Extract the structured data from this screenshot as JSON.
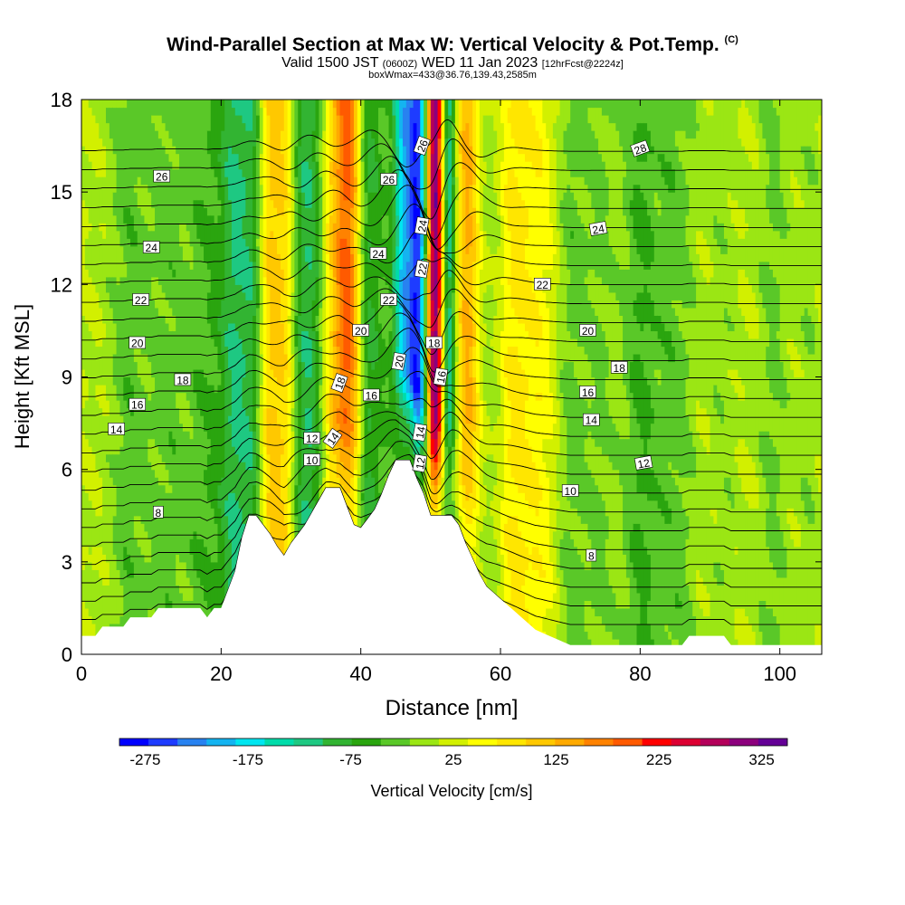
{
  "title_main": "Wind-Parallel Section at Max W: Vertical Velocity & Pot.Temp.",
  "title_mark": "(C)",
  "subtitle_a": "Valid 1500 JST",
  "subtitle_b": "(0600Z)",
  "subtitle_c": "WED 11 Jan 2023",
  "subtitle_d": "[12hrFcst@2224z]",
  "subtitle2": "boxWmax=433@36.76,139.43,2585m",
  "chart_data": {
    "type": "heatmap",
    "xlabel": "Distance [nm]",
    "ylabel": "Height [Kft MSL]",
    "xlim": [
      0,
      106
    ],
    "ylim": [
      0,
      18
    ],
    "xticks": [
      0,
      20,
      40,
      60,
      80,
      100
    ],
    "yticks": [
      0,
      3,
      6,
      9,
      12,
      15,
      18
    ],
    "colorbar": {
      "label": "Vertical Velocity [cm/s]",
      "ticks": [
        -275,
        -175,
        -75,
        25,
        125,
        225,
        325
      ],
      "colors": [
        "#0000ff",
        "#1e3cff",
        "#2882f0",
        "#14b4f0",
        "#00e6f0",
        "#00dcaa",
        "#1ec882",
        "#32b432",
        "#2aa50f",
        "#5ac828",
        "#9be614",
        "#d2f000",
        "#ffff00",
        "#ffe600",
        "#ffc800",
        "#ffaa00",
        "#ff8200",
        "#ff5a00",
        "#ff0000",
        "#dc0032",
        "#b4005a",
        "#8c007d",
        "#640096"
      ]
    },
    "terrain": [
      [
        0,
        0.6
      ],
      [
        1,
        0.6
      ],
      [
        2,
        0.6
      ],
      [
        3,
        0.9
      ],
      [
        4,
        0.9
      ],
      [
        5,
        0.9
      ],
      [
        6,
        0.9
      ],
      [
        7,
        1.2
      ],
      [
        8,
        1.2
      ],
      [
        9,
        1.2
      ],
      [
        10,
        1.2
      ],
      [
        11,
        1.5
      ],
      [
        12,
        1.5
      ],
      [
        13,
        1.5
      ],
      [
        14,
        1.5
      ],
      [
        15,
        1.5
      ],
      [
        16,
        1.5
      ],
      [
        17,
        1.5
      ],
      [
        18,
        1.2
      ],
      [
        19,
        1.5
      ],
      [
        20,
        1.5
      ],
      [
        21,
        2.1
      ],
      [
        22,
        2.7
      ],
      [
        23,
        3.8
      ],
      [
        24,
        4.5
      ],
      [
        25,
        4.5
      ],
      [
        26,
        4.2
      ],
      [
        27,
        3.9
      ],
      [
        28,
        3.5
      ],
      [
        29,
        3.2
      ],
      [
        30,
        3.6
      ],
      [
        31,
        3.9
      ],
      [
        32,
        4.2
      ],
      [
        33,
        4.6
      ],
      [
        34,
        5.0
      ],
      [
        35,
        5.4
      ],
      [
        36,
        5.4
      ],
      [
        37,
        5.4
      ],
      [
        38,
        4.8
      ],
      [
        39,
        4.2
      ],
      [
        40,
        4.1
      ],
      [
        41,
        4.4
      ],
      [
        42,
        4.7
      ],
      [
        43,
        5.2
      ],
      [
        44,
        5.8
      ],
      [
        45,
        6.3
      ],
      [
        46,
        6.3
      ],
      [
        47,
        6.3
      ],
      [
        48,
        5.7
      ],
      [
        49,
        5.2
      ],
      [
        50,
        4.5
      ],
      [
        51,
        4.5
      ],
      [
        52,
        4.5
      ],
      [
        53,
        4.5
      ],
      [
        54,
        4.2
      ],
      [
        55,
        3.6
      ],
      [
        56,
        3.1
      ],
      [
        57,
        2.6
      ],
      [
        58,
        2.2
      ],
      [
        59,
        2.0
      ],
      [
        60,
        1.8
      ],
      [
        61,
        1.6
      ],
      [
        62,
        1.4
      ],
      [
        63,
        1.2
      ],
      [
        64,
        1.0
      ],
      [
        65,
        0.8
      ],
      [
        66,
        0.7
      ],
      [
        67,
        0.6
      ],
      [
        68,
        0.5
      ],
      [
        69,
        0.4
      ],
      [
        70,
        0.3
      ],
      [
        71,
        0.3
      ],
      [
        72,
        0.3
      ],
      [
        73,
        0.3
      ],
      [
        74,
        0.3
      ],
      [
        75,
        0.3
      ],
      [
        76,
        0.3
      ],
      [
        77,
        0.3
      ],
      [
        78,
        0.3
      ],
      [
        79,
        0.3
      ],
      [
        80,
        0.3
      ],
      [
        81,
        0.3
      ],
      [
        82,
        0.3
      ],
      [
        83,
        0.3
      ],
      [
        84,
        0.3
      ],
      [
        85,
        0.3
      ],
      [
        86,
        0.3
      ],
      [
        87,
        0.6
      ],
      [
        88,
        0.6
      ],
      [
        89,
        0.6
      ],
      [
        90,
        0.6
      ],
      [
        91,
        0.6
      ],
      [
        92,
        0.6
      ],
      [
        93,
        0.3
      ],
      [
        94,
        0.3
      ],
      [
        95,
        0.3
      ],
      [
        96,
        0.3
      ],
      [
        97,
        0.3
      ],
      [
        98,
        0.3
      ],
      [
        99,
        0.3
      ],
      [
        100,
        0.3
      ],
      [
        101,
        0.3
      ],
      [
        102,
        0.3
      ],
      [
        103,
        0.3
      ],
      [
        104,
        0.3
      ],
      [
        105,
        0.3
      ],
      [
        106,
        0.3
      ]
    ],
    "w_bands": [
      {
        "x": 7,
        "w": 3,
        "v": -45
      },
      {
        "x": 12,
        "w": 2.5,
        "v": -35
      },
      {
        "x": 18,
        "w": 4,
        "v": -55
      },
      {
        "x": 22,
        "w": 2,
        "v": -95
      },
      {
        "x": 24.5,
        "w": 1.5,
        "v": -80
      },
      {
        "x": 27,
        "w": 1.6,
        "v": 85
      },
      {
        "x": 29.3,
        "w": 1.6,
        "v": 75
      },
      {
        "x": 31.5,
        "w": 1.8,
        "v": -90
      },
      {
        "x": 33.5,
        "w": 1.6,
        "v": -75
      },
      {
        "x": 36,
        "w": 2,
        "v": 70
      },
      {
        "x": 38.2,
        "w": 1.8,
        "v": 155
      },
      {
        "x": 41,
        "w": 1.4,
        "v": -85
      },
      {
        "x": 43,
        "w": 1.6,
        "v": -45
      },
      {
        "x": 46,
        "w": 1.5,
        "v": -175
      },
      {
        "x": 48.2,
        "w": 1.5,
        "v": -265
      },
      {
        "x": 50.6,
        "w": 1.3,
        "v": 325
      },
      {
        "x": 52.5,
        "w": 1.1,
        "v": -165
      },
      {
        "x": 55.3,
        "w": 1.7,
        "v": 120
      },
      {
        "x": 59,
        "w": 2.5,
        "v": -20
      },
      {
        "x": 61.5,
        "w": 2,
        "v": 55
      },
      {
        "x": 65,
        "w": 3,
        "v": 50
      },
      {
        "x": 70,
        "w": 2,
        "v": -40
      },
      {
        "x": 74,
        "w": 2.5,
        "v": -35
      },
      {
        "x": 80,
        "w": 2.5,
        "v": -60
      },
      {
        "x": 85,
        "w": 3,
        "v": -45
      },
      {
        "x": 92,
        "w": 2,
        "v": -20
      },
      {
        "x": 99,
        "w": 2,
        "v": -35
      },
      {
        "x": 104,
        "w": 2,
        "v": -20
      }
    ],
    "theta": {
      "levels": [
        4,
        5,
        6,
        7,
        8,
        9,
        10,
        11,
        12,
        13,
        14,
        15,
        16,
        17,
        18,
        19,
        20,
        21,
        22,
        23,
        24,
        25,
        26,
        27,
        28,
        29
      ],
      "labeled": [
        8,
        10,
        12,
        14,
        16,
        18,
        20,
        22,
        24,
        26
      ]
    },
    "contour_labels": [
      {
        "text": "26",
        "x": 11.5,
        "y": 15.5,
        "rot": 0
      },
      {
        "text": "24",
        "x": 10,
        "y": 13.2,
        "rot": 0
      },
      {
        "text": "22",
        "x": 8.5,
        "y": 11.5,
        "rot": 0
      },
      {
        "text": "20",
        "x": 8,
        "y": 10.1,
        "rot": 0
      },
      {
        "text": "18",
        "x": 14.5,
        "y": 8.9,
        "rot": 0
      },
      {
        "text": "16",
        "x": 8,
        "y": 8.1,
        "rot": 0
      },
      {
        "text": "14",
        "x": 5,
        "y": 7.3,
        "rot": 0
      },
      {
        "text": "8",
        "x": 11,
        "y": 4.6,
        "rot": 0
      },
      {
        "text": "12",
        "x": 33,
        "y": 7.0,
        "rot": 0
      },
      {
        "text": "10",
        "x": 33,
        "y": 6.3,
        "rot": 0
      },
      {
        "text": "20",
        "x": 40,
        "y": 10.5,
        "rot": 0
      },
      {
        "text": "22",
        "x": 44,
        "y": 11.5,
        "rot": 0
      },
      {
        "text": "24",
        "x": 42.5,
        "y": 13.0,
        "rot": 0
      },
      {
        "text": "26",
        "x": 44,
        "y": 15.4,
        "rot": 0
      },
      {
        "text": "16",
        "x": 41.5,
        "y": 8.4,
        "rot": 0
      },
      {
        "text": "18",
        "x": 37,
        "y": 8.8,
        "rot": -70
      },
      {
        "text": "14",
        "x": 36,
        "y": 7.0,
        "rot": -55
      },
      {
        "text": "20",
        "x": 45.5,
        "y": 9.5,
        "rot": -80
      },
      {
        "text": "18",
        "x": 50.5,
        "y": 10.1,
        "rot": 0
      },
      {
        "text": "16",
        "x": 51.5,
        "y": 9.0,
        "rot": -80
      },
      {
        "text": "14",
        "x": 48.5,
        "y": 7.2,
        "rot": -80
      },
      {
        "text": "12",
        "x": 48.5,
        "y": 6.2,
        "rot": -80
      },
      {
        "text": "22",
        "x": 48.8,
        "y": 12.5,
        "rot": -80
      },
      {
        "text": "24",
        "x": 48.8,
        "y": 13.9,
        "rot": -80
      },
      {
        "text": "26",
        "x": 48.8,
        "y": 16.5,
        "rot": -70
      },
      {
        "text": "28",
        "x": 80,
        "y": 16.4,
        "rot": -20
      },
      {
        "text": "24",
        "x": 74,
        "y": 13.8,
        "rot": -10
      },
      {
        "text": "22",
        "x": 66,
        "y": 12.0,
        "rot": 0
      },
      {
        "text": "20",
        "x": 72.5,
        "y": 10.5,
        "rot": 0
      },
      {
        "text": "18",
        "x": 77,
        "y": 9.3,
        "rot": 0
      },
      {
        "text": "16",
        "x": 72.5,
        "y": 8.5,
        "rot": 0
      },
      {
        "text": "14",
        "x": 73,
        "y": 7.6,
        "rot": 0
      },
      {
        "text": "12",
        "x": 80.5,
        "y": 6.2,
        "rot": -10
      },
      {
        "text": "10",
        "x": 70,
        "y": 5.3,
        "rot": 0
      },
      {
        "text": "8",
        "x": 73,
        "y": 3.2,
        "rot": 0
      }
    ]
  }
}
